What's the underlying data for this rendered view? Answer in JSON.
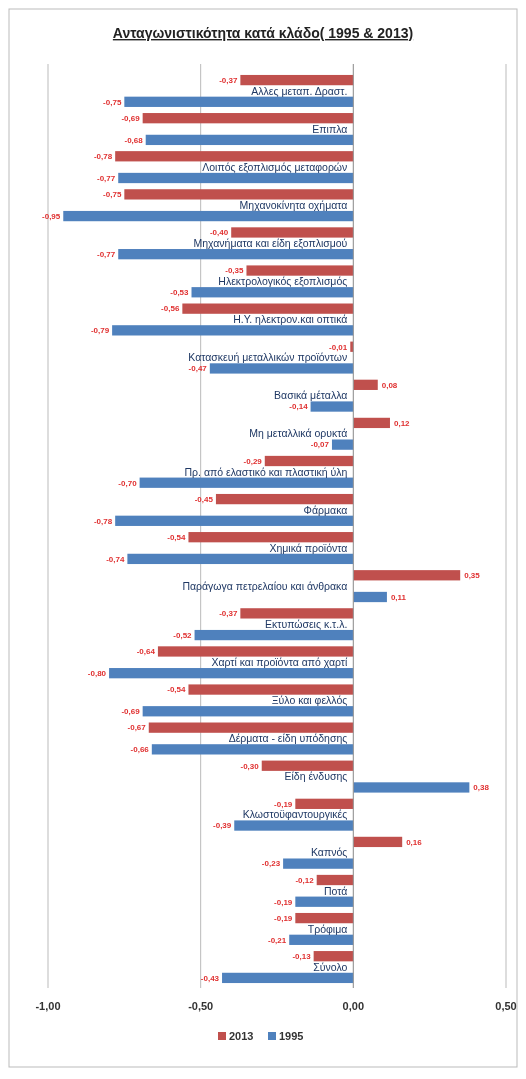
{
  "chart_data": {
    "type": "bar",
    "orientation": "horizontal",
    "title": "Ανταγωνιστικότητα κατά κλάδο( 1995 & 2013)",
    "categories": [
      "Αλλες μεταπ. Δραστ.",
      "Επιπλα",
      "Λοιπός εξοπλισμός μεταφορών",
      "Μηχανοκίνητα οχήματα",
      "Μηχανήματα και είδη εξοπλισμού",
      "Ηλεκτρολογικός εξοπλισμός",
      "Η.Υ. ηλεκτρον.και οπτικά",
      "Κατασκευή μεταλλικών προϊόντων",
      "Βασικά μέταλλα",
      "Μη μεταλλικά ορυκτά",
      "Πρ. από ελαστικό και πλαστική ύλη",
      "Φάρμακα",
      "Χημικά προϊόντα",
      "Παράγωγα πετρελαίου και άνθρακα",
      "Εκτυπώσεις κ.τ.λ.",
      "Χαρτί και προϊόντα από χαρτί",
      "Ξύλο και φελλός",
      "Δέρματα - είδη υπόδησης",
      "Είδη ένδυσης",
      "Κλωστοϋφαντουργικές",
      "Καπνός",
      "Ποτά",
      "Τρόφιμα",
      "Σύνολο"
    ],
    "series": [
      {
        "name": "2013",
        "color": "#c0504d",
        "values": [
          -0.37,
          -0.69,
          -0.78,
          -0.75,
          -0.4,
          -0.35,
          -0.56,
          -0.01,
          0.08,
          0.12,
          -0.29,
          -0.45,
          -0.54,
          0.35,
          -0.37,
          -0.64,
          -0.54,
          -0.67,
          -0.3,
          -0.19,
          0.16,
          -0.12,
          -0.19,
          -0.13
        ],
        "value_labels": [
          "-0,37",
          "-0,69",
          "-0,78",
          "-0,75",
          "-0,40",
          "-0,35",
          "-0,56",
          "-0,01",
          "0,08",
          "0,12",
          "-0,29",
          "-0,45",
          "-0,54",
          "0,35",
          "-0,37",
          "-0,64",
          "-0,54",
          "-0,67",
          "-0,30",
          "-0,19",
          "0,16",
          "-0,12",
          "-0,19",
          "-0,13"
        ]
      },
      {
        "name": "1995",
        "color": "#4f81bd",
        "values": [
          -0.75,
          -0.68,
          -0.77,
          -0.95,
          -0.77,
          -0.53,
          -0.79,
          -0.47,
          -0.14,
          -0.07,
          -0.7,
          -0.78,
          -0.74,
          0.11,
          -0.52,
          -0.8,
          -0.69,
          -0.66,
          0.38,
          -0.39,
          -0.23,
          -0.19,
          -0.21,
          -0.43
        ],
        "value_labels": [
          "-0,75",
          "-0,68",
          "-0,77",
          "-0,95",
          "-0,77",
          "-0,53",
          "-0,79",
          "-0,47",
          "-0,14",
          "-0,07",
          "-0,70",
          "-0,78",
          "-0,74",
          "0,11",
          "-0,52",
          "-0,80",
          "-0,69",
          "-0,66",
          "0,38",
          "-0,39",
          "-0,23",
          "-0,19",
          "-0,21",
          "-0,43"
        ]
      }
    ],
    "xlim": [
      -1,
      0.5
    ],
    "xticks": [
      {
        "value": -1,
        "label": "-1,00"
      },
      {
        "value": -0.5,
        "label": "-0,50"
      },
      {
        "value": 0,
        "label": "0,00"
      },
      {
        "value": 0.5,
        "label": "0,50"
      }
    ],
    "grid": "x",
    "legend": "bottom"
  }
}
